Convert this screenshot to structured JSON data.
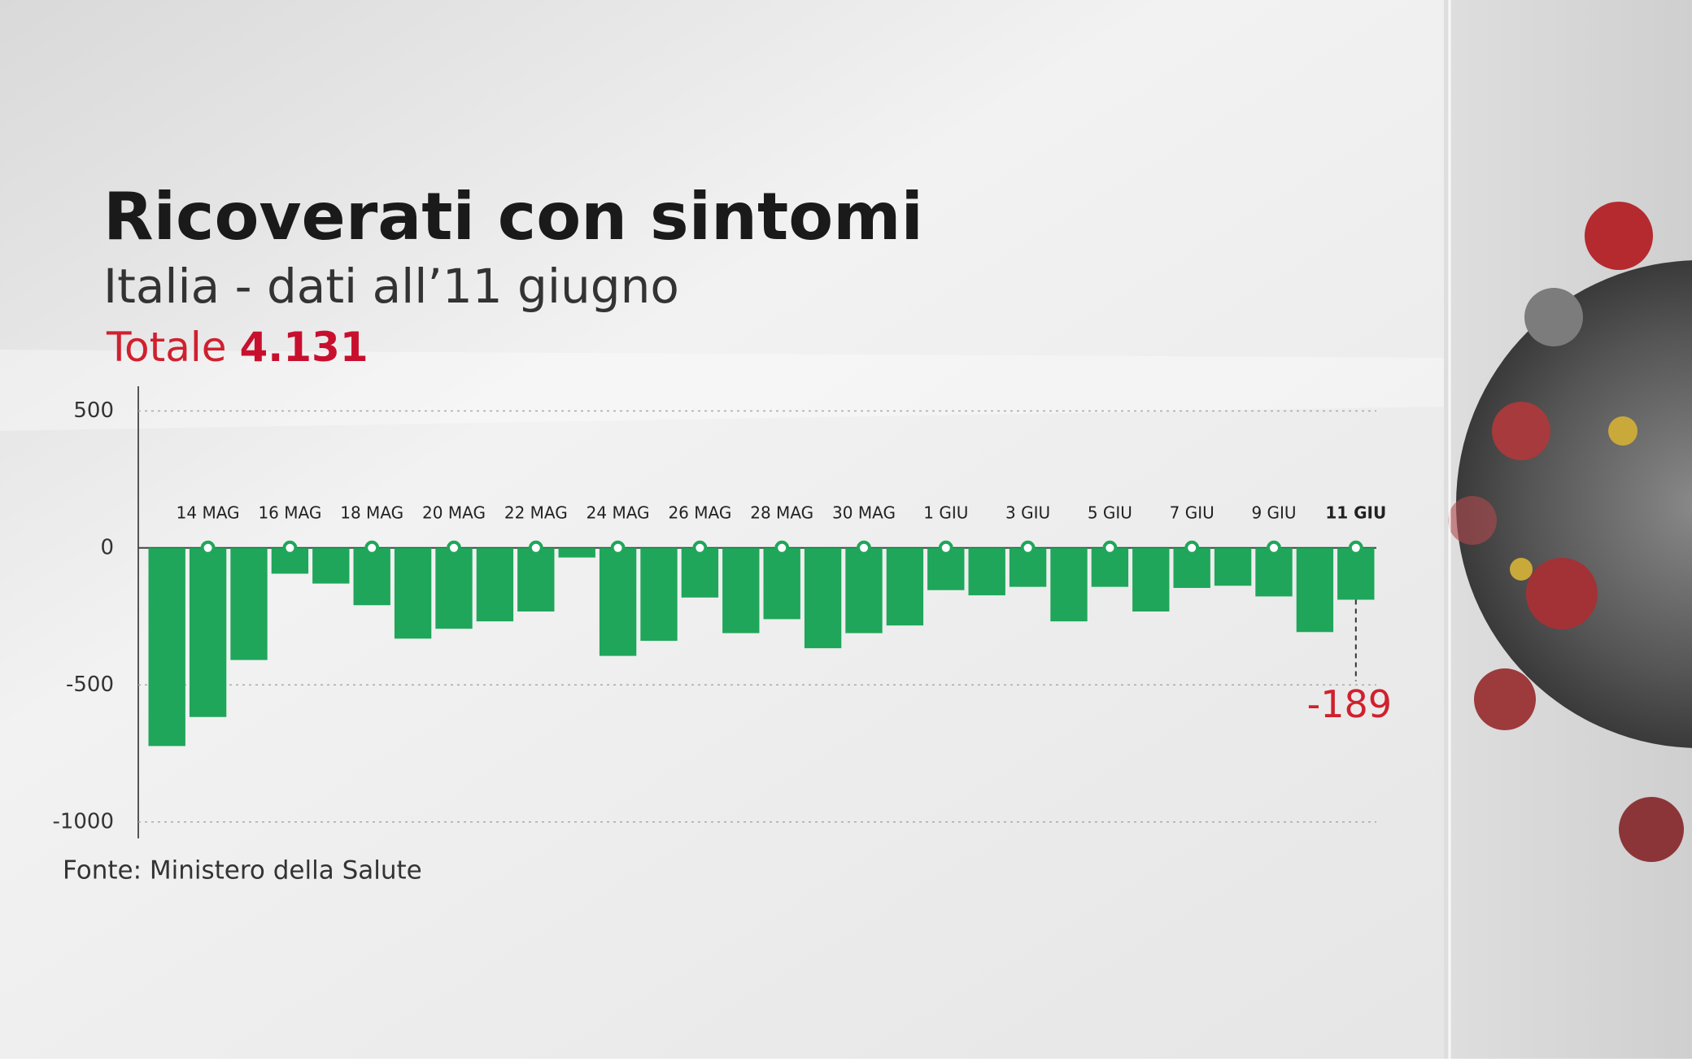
{
  "chart_data": {
    "type": "bar",
    "title": "Ricoverati con sintomi",
    "subtitle": "Italia - dati all’11 giugno",
    "total_label": "Totale",
    "total_value": "4.131",
    "source": "Fonte: Ministero della Salute",
    "categories": [
      null,
      "14 MAG",
      null,
      "16 MAG",
      null,
      "18 MAG",
      null,
      "20 MAG",
      null,
      "22 MAG",
      null,
      "24 MAG",
      null,
      "26 MAG",
      null,
      "28 MAG",
      null,
      "30 MAG",
      null,
      "1 GIU",
      null,
      "3 GIU",
      null,
      "5 GIU",
      null,
      "7 GIU",
      null,
      "9 GIU",
      null,
      "11 GIU"
    ],
    "values": [
      -723,
      -617,
      -409,
      -94,
      -130,
      -209,
      -331,
      -295,
      -268,
      -232,
      -35,
      -394,
      -339,
      -181,
      -311,
      -260,
      -366,
      -311,
      -283,
      -154,
      -173,
      -142,
      -268,
      -142,
      -232,
      -146,
      -138,
      -177,
      -307,
      -189
    ],
    "color": "#1fa65a",
    "highlight_color": "#d0202e",
    "ylim": [
      -1060,
      590
    ],
    "yticks": [
      -1000,
      -500,
      0,
      500
    ],
    "grid": true
  }
}
